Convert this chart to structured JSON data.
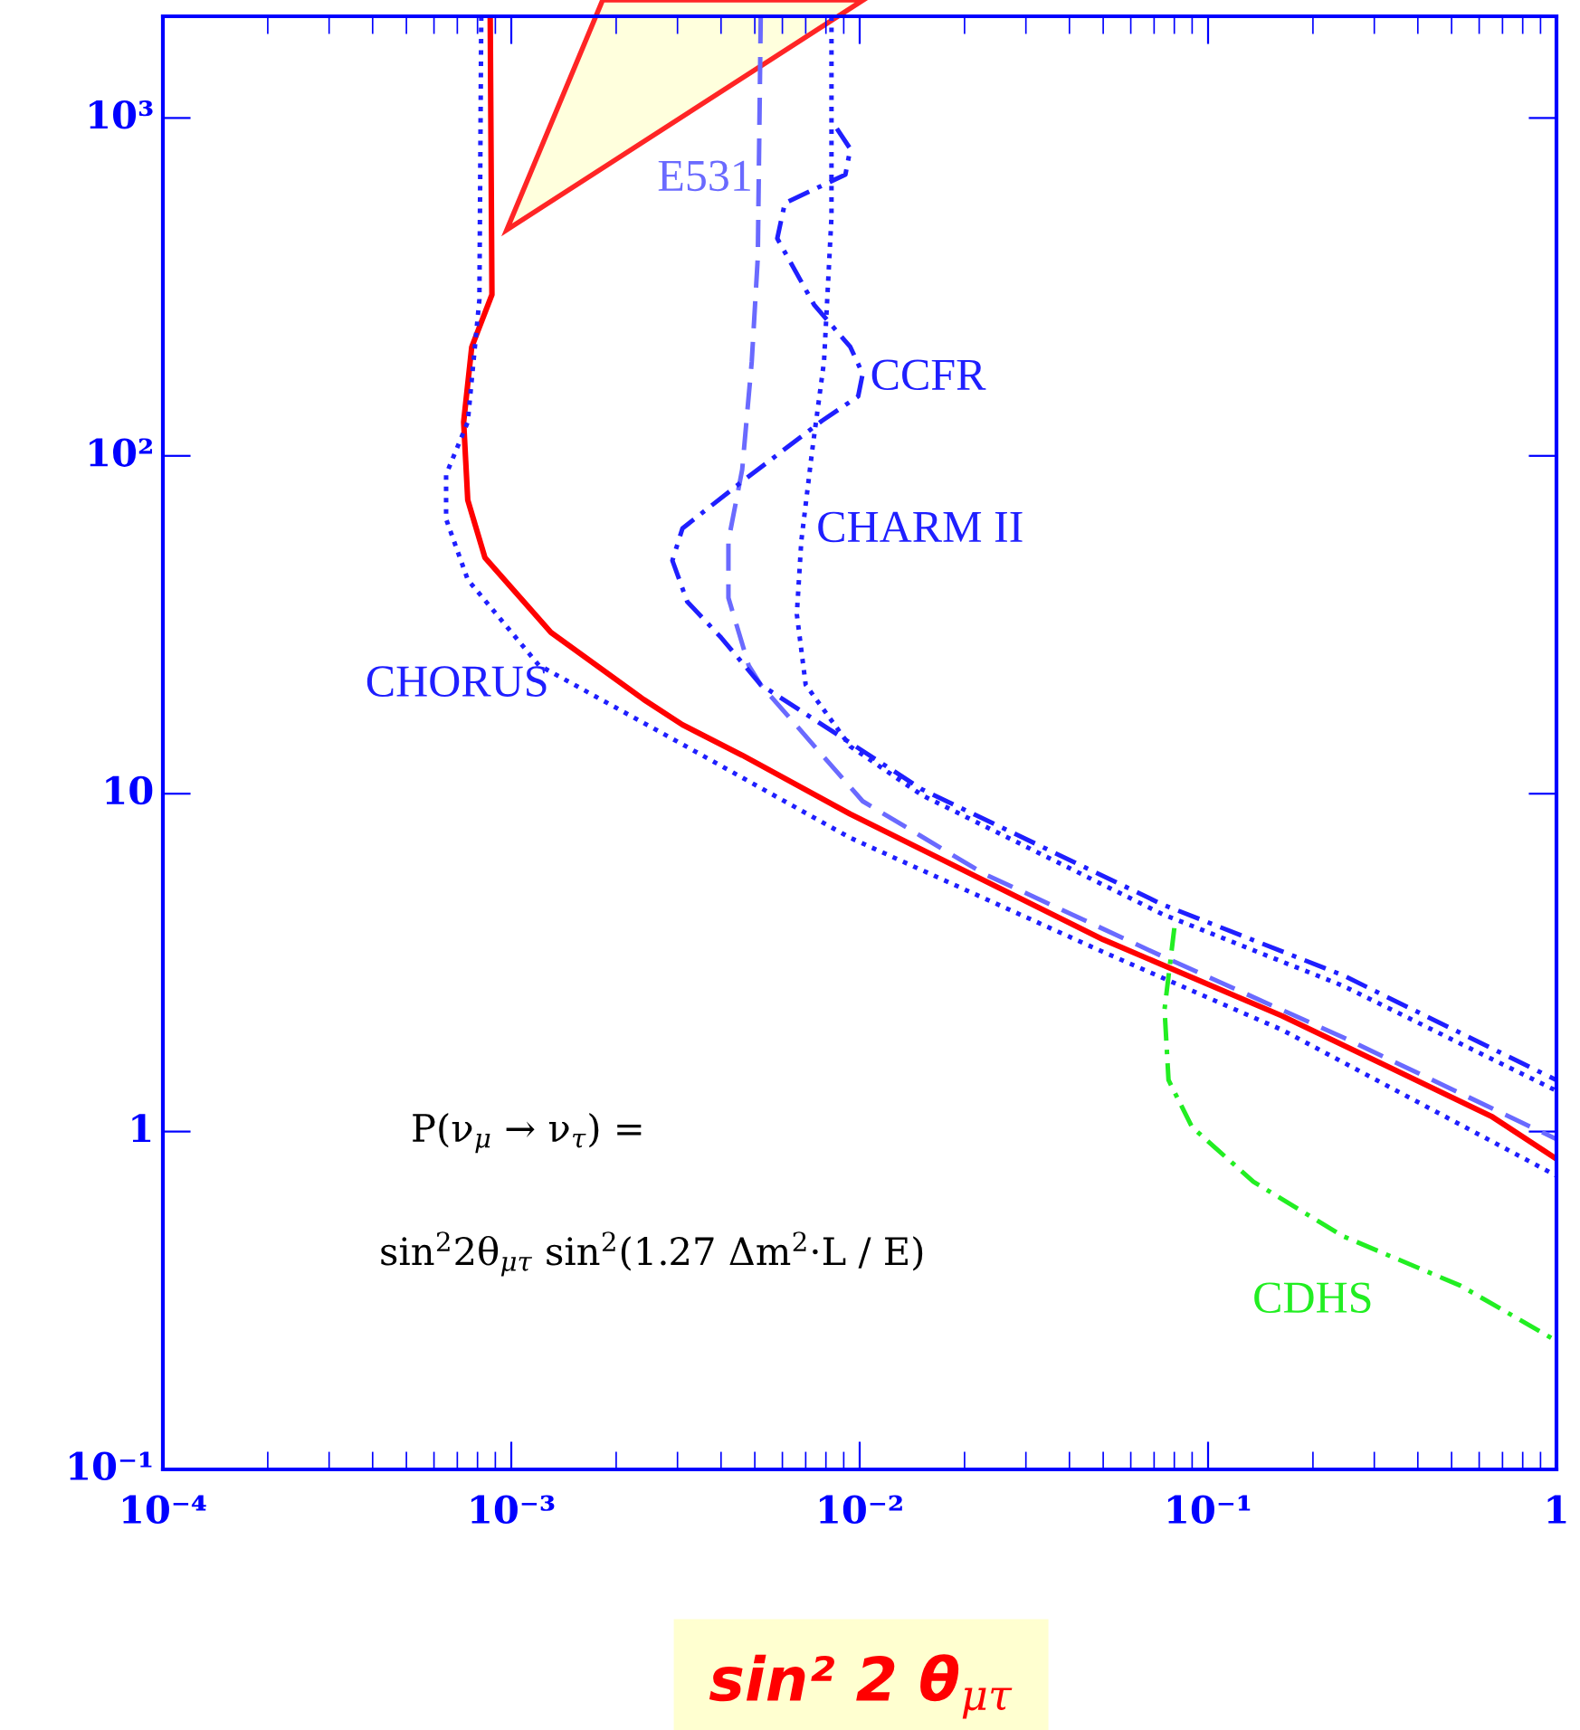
{
  "chart_data": {
    "type": "line",
    "xlabel": "sin² 2 θ$_{μτ}$",
    "log": "xy",
    "grid": false,
    "legend": false,
    "marker": "none",
    "xlim": [
      0.0001,
      1
    ],
    "ylim": [
      0.1,
      2000
    ],
    "xticks": [
      {
        "value": 0.0001,
        "label": "10⁻⁴"
      },
      {
        "value": 0.001,
        "label": "10⁻³"
      },
      {
        "value": 0.01,
        "label": "10⁻²"
      },
      {
        "value": 0.1,
        "label": "10⁻¹"
      },
      1
    ],
    "yticks": [
      {
        "value": 0.1,
        "label": "10⁻¹"
      },
      1,
      10,
      {
        "value": 100,
        "label": "10²"
      },
      {
        "value": 1000,
        "label": "10³"
      }
    ],
    "annotations": [
      "P(ν$_{μ}$ → ν$_{τ}$) =",
      "sin$^{2}$2θ$_{μτ}$ sin$^{2}$(1.27 Δm$^{2}$·L / E)"
    ],
    "series": [
      {
        "color": "#ff0000",
        "line_style": "solid",
        "x": [
          0.00087,
          0.00088,
          0.00077,
          0.00073,
          0.00075,
          0.00084,
          0.0013,
          0.0024,
          0.0031,
          0.0046,
          0.0094,
          0.05,
          0.163,
          0.65,
          1.0
        ],
        "values": [
          2000,
          300,
          210,
          126,
          74,
          50,
          30,
          19,
          16,
          13,
          8.7,
          3.7,
          2.2,
          1.11,
          0.83
        ]
      },
      {
        "name": "CHORUS",
        "color": "#1f1fff",
        "line_style": "dotted",
        "x": [
          0.00082,
          0.00081,
          0.00075,
          0.00065,
          0.00065,
          0.00075,
          0.0012,
          0.0031,
          0.0094,
          0.05,
          0.163,
          1.0
        ],
        "values": [
          2000,
          290,
          126,
          88,
          65,
          43,
          24,
          14,
          7.4,
          3.4,
          2.0,
          0.74
        ]
      },
      {
        "name": "E531",
        "color": "#6a6aff",
        "line_style": "dashed",
        "x": [
          0.0052,
          0.0051,
          0.0049,
          0.0046,
          0.0042,
          0.0042,
          0.0048,
          0.0052,
          0.0102,
          0.0227,
          0.074,
          0.244,
          1.0
        ],
        "values": [
          2000,
          386,
          190,
          91,
          56,
          38,
          24,
          21,
          9.5,
          5.8,
          3.3,
          1.9,
          0.95
        ]
      },
      {
        "name": "CCFR",
        "color": "#1f1fff",
        "line_style": "dashdot",
        "x": [
          0.0086,
          0.0094,
          0.0091,
          0.0061,
          0.0058,
          0.0074,
          0.0094,
          0.0102,
          0.0099,
          0.0078,
          0.0046,
          0.0031,
          0.0029,
          0.0032,
          0.004,
          0.0052,
          0.0151,
          0.074,
          0.244,
          1.0
        ],
        "values": [
          930,
          810,
          680,
          560,
          440,
          280,
          210,
          175,
          150,
          127,
          84,
          61,
          49,
          37,
          29,
          21,
          10.3,
          4.7,
          2.9,
          1.42
        ]
      },
      {
        "name": "CHARM II",
        "color": "#1f1fff",
        "line_style": "dotted",
        "x": [
          0.0083,
          0.0083,
          0.0079,
          0.0073,
          0.0068,
          0.0066,
          0.007,
          0.0094,
          0.0151,
          0.074,
          0.244,
          1.0
        ],
        "values": [
          2000,
          510,
          190,
          103,
          56,
          34,
          21,
          13.8,
          9.9,
          4.4,
          2.7,
          1.32
        ]
      },
      {
        "name": "CDHS",
        "color": "#22ee22",
        "line_style": "dashdot",
        "x": [
          0.08,
          0.075,
          0.077,
          0.09,
          0.135,
          0.244,
          0.53,
          1.0
        ],
        "values": [
          4.0,
          2.3,
          1.42,
          1.03,
          0.71,
          0.49,
          0.35,
          0.24
        ]
      }
    ]
  }
}
